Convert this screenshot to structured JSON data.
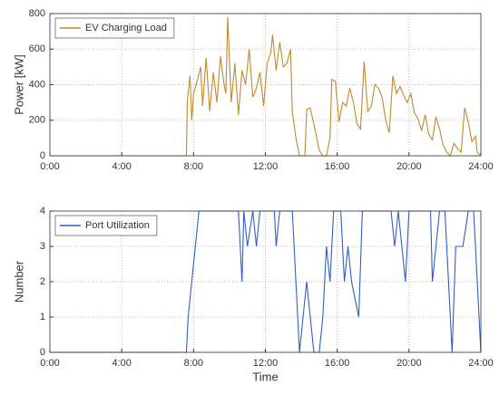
{
  "chart_data": [
    {
      "type": "line",
      "ylabel": "Power [kW]",
      "x": [
        0,
        7.6,
        7.65,
        7.8,
        7.9,
        8.0,
        8.2,
        8.4,
        8.5,
        8.7,
        8.9,
        9.1,
        9.3,
        9.5,
        9.7,
        9.8,
        9.9,
        10.1,
        10.3,
        10.5,
        10.7,
        10.9,
        11.1,
        11.3,
        11.5,
        11.7,
        11.9,
        12.1,
        12.3,
        12.4,
        12.6,
        12.8,
        13.0,
        13.2,
        13.4,
        13.5,
        13.7,
        13.9,
        14.2,
        14.3,
        14.5,
        14.8,
        15.0,
        15.2,
        15.4,
        15.6,
        15.7,
        15.9,
        16.1,
        16.3,
        16.5,
        16.7,
        16.9,
        17.1,
        17.3,
        17.5,
        17.7,
        17.9,
        18.1,
        18.3,
        18.5,
        18.7,
        18.9,
        19.1,
        19.3,
        19.5,
        19.7,
        19.9,
        20.1,
        20.3,
        20.5,
        20.7,
        20.9,
        21.1,
        21.3,
        21.5,
        21.7,
        21.9,
        22.1,
        22.3,
        22.5,
        22.7,
        22.9,
        23.1,
        23.3,
        23.5,
        23.7,
        23.8,
        24
      ],
      "series": [
        {
          "name": "EV Charging Load",
          "color": "#c08a2e",
          "values": [
            0,
            0,
            300,
            450,
            200,
            350,
            420,
            500,
            280,
            550,
            250,
            470,
            300,
            560,
            400,
            350,
            780,
            300,
            520,
            230,
            480,
            400,
            600,
            330,
            380,
            470,
            280,
            520,
            580,
            680,
            480,
            640,
            500,
            520,
            600,
            250,
            100,
            0,
            0,
            260,
            270,
            130,
            30,
            0,
            0,
            100,
            430,
            420,
            190,
            300,
            280,
            380,
            300,
            180,
            150,
            530,
            250,
            280,
            400,
            380,
            330,
            200,
            130,
            450,
            350,
            390,
            340,
            300,
            350,
            240,
            210,
            140,
            230,
            120,
            90,
            220,
            150,
            60,
            20,
            0,
            70,
            40,
            20,
            270,
            190,
            80,
            110,
            20,
            0
          ]
        }
      ],
      "xlim": [
        0,
        24
      ],
      "xticks": [
        {
          "value": 0,
          "label": "0:00"
        },
        {
          "value": 4,
          "label": "4:00"
        },
        {
          "value": 8,
          "label": "8:00"
        },
        {
          "value": 12,
          "label": "12:00"
        },
        {
          "value": 16,
          "label": "16:00"
        },
        {
          "value": 20,
          "label": "20:00"
        },
        {
          "value": 24,
          "label": "24:00"
        }
      ],
      "ylim": [
        0,
        800
      ],
      "yticks": [
        0,
        200,
        400,
        600,
        800
      ],
      "grid": true,
      "legend": "top-left"
    },
    {
      "type": "line",
      "xlabel": "Time",
      "ylabel": "Number",
      "x": [
        0,
        7.6,
        7.7,
        7.9,
        8.1,
        8.3,
        10.5,
        10.6,
        10.7,
        10.8,
        11.0,
        11.3,
        11.5,
        11.7,
        12.5,
        12.6,
        12.8,
        13.5,
        13.7,
        13.9,
        14.1,
        14.3,
        14.5,
        14.7,
        15.0,
        15.2,
        15.4,
        15.6,
        15.8,
        16.2,
        16.4,
        16.6,
        16.8,
        17.2,
        17.4,
        19.0,
        19.2,
        19.4,
        19.6,
        19.8,
        20.0,
        21.2,
        21.3,
        21.5,
        21.7,
        22.0,
        22.2,
        22.4,
        22.6,
        23.0,
        23.3,
        23.6,
        23.8,
        24
      ],
      "series": [
        {
          "name": "Port Utilization",
          "color": "#2f5fc4",
          "values": [
            0,
            0,
            1,
            2,
            3,
            4,
            4,
            3,
            2,
            4,
            3,
            4,
            3,
            4,
            4,
            3,
            4,
            4,
            2,
            0,
            1,
            2,
            1,
            0,
            0,
            1,
            3,
            2,
            4,
            4,
            2,
            3,
            2,
            1,
            4,
            4,
            3,
            4,
            3,
            2,
            4,
            4,
            2,
            3,
            4,
            4,
            2,
            0,
            3,
            3,
            4,
            4,
            2,
            0
          ]
        }
      ],
      "xlim": [
        0,
        24
      ],
      "xticks": [
        {
          "value": 0,
          "label": "0:00"
        },
        {
          "value": 4,
          "label": "4:00"
        },
        {
          "value": 8,
          "label": "8:00"
        },
        {
          "value": 12,
          "label": "12:00"
        },
        {
          "value": 16,
          "label": "16:00"
        },
        {
          "value": 20,
          "label": "20:00"
        },
        {
          "value": 24,
          "label": "24:00"
        }
      ],
      "ylim": [
        0,
        4
      ],
      "yticks": [
        0,
        1,
        2,
        3,
        4
      ],
      "grid": true,
      "legend": "top-left"
    }
  ]
}
